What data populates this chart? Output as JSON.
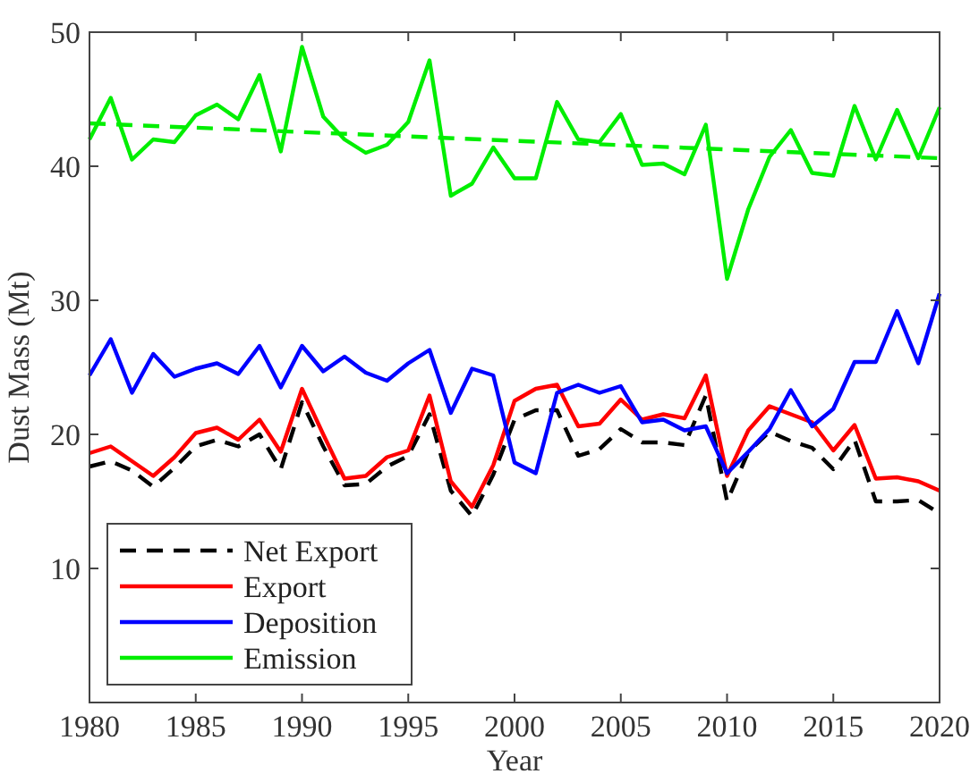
{
  "chart_data": {
    "type": "line",
    "xlabel": "Year",
    "ylabel": "Dust Mass (Mt)",
    "xlim": [
      1980,
      2020
    ],
    "ylim": [
      0,
      50
    ],
    "xticks": [
      1980,
      1985,
      1990,
      1995,
      2000,
      2005,
      2010,
      2015,
      2020
    ],
    "yticks": [
      10,
      20,
      30,
      40,
      50
    ],
    "x": [
      1980,
      1981,
      1982,
      1983,
      1984,
      1985,
      1986,
      1987,
      1988,
      1989,
      1990,
      1991,
      1992,
      1993,
      1994,
      1995,
      1996,
      1997,
      1998,
      1999,
      2000,
      2001,
      2002,
      2003,
      2004,
      2005,
      2006,
      2007,
      2008,
      2009,
      2010,
      2011,
      2012,
      2013,
      2014,
      2015,
      2016,
      2017,
      2018,
      2019,
      2020
    ],
    "legend": "bottom left",
    "grid": false,
    "marker": "none",
    "series": [
      {
        "name": "Net Export",
        "color": "#000000",
        "line_style": "dashed",
        "values": [
          17.6,
          18,
          17.3,
          16.1,
          17.5,
          19.1,
          19.6,
          19.1,
          20,
          17.4,
          22.4,
          19.1,
          16.2,
          16.3,
          17.6,
          18.4,
          21.5,
          15.8,
          13.9,
          17,
          21.1,
          21.8,
          21.8,
          18.4,
          18.9,
          20.4,
          19.4,
          19.4,
          19.2,
          22.9,
          15,
          18.7,
          20.2,
          19.5,
          19,
          17.4,
          19.6,
          15,
          15,
          15.1,
          14.1
        ]
      },
      {
        "name": "Export",
        "color": "#ff0000",
        "line_style": "solid",
        "values": [
          18.6,
          19.1,
          18,
          16.9,
          18.3,
          20.1,
          20.5,
          19.6,
          21.1,
          18.7,
          23.4,
          20,
          16.7,
          16.9,
          18.3,
          18.8,
          22.9,
          16.5,
          14.6,
          17.7,
          22.5,
          23.4,
          23.7,
          20.6,
          20.8,
          22.6,
          21.1,
          21.5,
          21.2,
          24.4,
          16.9,
          20.3,
          22.1,
          21.5,
          20.9,
          18.8,
          20.7,
          16.7,
          16.8,
          16.5,
          15.8
        ]
      },
      {
        "name": "Deposition",
        "color": "#0000ff",
        "line_style": "solid",
        "values": [
          24.4,
          27.1,
          23.1,
          26,
          24.3,
          24.9,
          25.3,
          24.5,
          26.6,
          23.5,
          26.6,
          24.7,
          25.8,
          24.6,
          24,
          25.3,
          26.3,
          21.6,
          24.9,
          24.4,
          17.9,
          17.1,
          23.1,
          23.7,
          23.1,
          23.6,
          20.9,
          21.1,
          20.3,
          20.6,
          17.1,
          18.7,
          20.4,
          23.3,
          20.6,
          21.9,
          25.4,
          25.4,
          29.2,
          25.3,
          30.5
        ]
      },
      {
        "name": "Emission",
        "color": "#00ee00",
        "line_style": "solid",
        "values": [
          42,
          45.1,
          40.5,
          42,
          41.8,
          43.8,
          44.6,
          43.5,
          46.8,
          41.1,
          48.9,
          43.7,
          42,
          41,
          41.6,
          43.3,
          47.9,
          37.8,
          38.7,
          41.4,
          39.1,
          39.1,
          44.8,
          42,
          41.8,
          43.9,
          40.1,
          40.2,
          39.4,
          43.1,
          31.6,
          36.8,
          40.7,
          42.7,
          39.5,
          39.3,
          44.5,
          40.5,
          44.2,
          40.6,
          44.4
        ]
      },
      {
        "type": "line",
        "color": "#00ee00",
        "line_style": "dashed",
        "x": [
          1980,
          2020
        ],
        "values": [
          43.2,
          40.6
        ]
      }
    ]
  }
}
